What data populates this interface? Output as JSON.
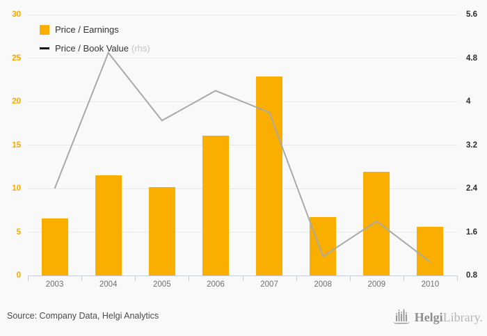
{
  "colors": {
    "background": "#f9f9f9",
    "bar": "#f9ae00",
    "line": "#a9a9a9",
    "left_axis_label": "#f5a800",
    "right_axis_label": "#2d2d2d",
    "gridline": "#e9e9e9",
    "x_axis": "#c6cde1",
    "year_label": "#6e6e6e",
    "footer_text": "#4a4a4a",
    "logo_gray": "#9a9a9a"
  },
  "legend": {
    "items": [
      {
        "label": "Price / Earnings",
        "suffix": "",
        "swatch": "bar"
      },
      {
        "label": "Price / Book Value",
        "suffix": "(rhs)",
        "swatch": "line"
      }
    ]
  },
  "footer": {
    "source": "Source: Company Data, Helgi Analytics"
  },
  "logo": {
    "icon": "bar-chart-skyline-icon",
    "text_bold": "Helgi",
    "text_light": "Library."
  },
  "chart_data": {
    "type": "bar",
    "title": "",
    "categories": [
      "2003",
      "2004",
      "2005",
      "2006",
      "2007",
      "2008",
      "2009",
      "2010"
    ],
    "series": [
      {
        "name": "Price / Earnings",
        "type": "bar",
        "axis": "left",
        "color": "#f9ae00",
        "values": [
          6.6,
          11.5,
          10.2,
          16.1,
          22.9,
          6.7,
          11.9,
          5.6
        ]
      },
      {
        "name": "Price / Book Value",
        "type": "line",
        "axis": "right",
        "color": "#a9a9a9",
        "values": [
          2.4,
          4.9,
          3.65,
          4.2,
          3.8,
          1.15,
          1.8,
          1.05
        ]
      }
    ],
    "left_axis": {
      "range": [
        0,
        30
      ],
      "ticks": [
        0,
        5,
        10,
        15,
        20,
        25,
        30
      ]
    },
    "right_axis": {
      "range": [
        0.8,
        5.6
      ],
      "ticks": [
        0.8,
        1.6,
        2.4,
        3.2,
        4,
        4.8,
        5.6
      ]
    },
    "grid": true,
    "legend_position": "top-left"
  }
}
